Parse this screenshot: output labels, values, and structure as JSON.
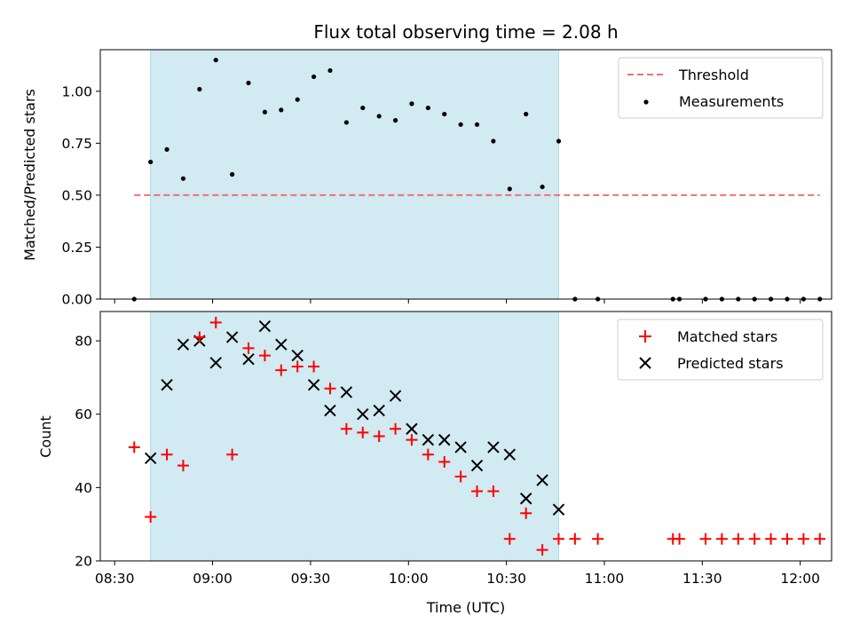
{
  "chart_data": {
    "title": "Flux total observing time = 2.08 h",
    "xlabel": "Time (UTC)",
    "x_ticks": [
      "08:30",
      "09:00",
      "09:30",
      "10:00",
      "10:30",
      "11:00",
      "11:30",
      "12:00"
    ],
    "x_tick_minutes": [
      510,
      540,
      570,
      600,
      630,
      660,
      690,
      720
    ],
    "xlim": [
      "08:30",
      "12:09"
    ],
    "shaded_span": {
      "start": "08:41",
      "end": "10:46",
      "color": "#add8e6"
    },
    "panels": [
      {
        "type": "scatter",
        "ylabel": "Matched/Predicted stars",
        "ylim": [
          0,
          1.2
        ],
        "y_ticks": [
          "0.00",
          "0.25",
          "0.50",
          "0.75",
          "1.00"
        ],
        "y_tick_values": [
          0,
          0.25,
          0.5,
          0.75,
          1.0
        ],
        "legend": {
          "placement": "top-right",
          "entries": [
            "Threshold",
            "Measurements"
          ]
        },
        "threshold": {
          "name": "Threshold",
          "value": 0.5,
          "x_range": [
            "08:36",
            "12:06"
          ],
          "color": "#f07070"
        },
        "series": [
          {
            "name": "Measurements",
            "marker": "dot",
            "color": "#000000",
            "x": [
              "08:36",
              "08:41",
              "08:46",
              "08:51",
              "08:56",
              "09:01",
              "09:06",
              "09:11",
              "09:16",
              "09:21",
              "09:26",
              "09:31",
              "09:36",
              "09:41",
              "09:46",
              "09:51",
              "09:56",
              "10:01",
              "10:06",
              "10:11",
              "10:16",
              "10:21",
              "10:26",
              "10:31",
              "10:36",
              "10:41",
              "10:46",
              "10:51",
              "10:58",
              "11:21",
              "11:23",
              "11:31",
              "11:36",
              "11:41",
              "11:46",
              "11:51",
              "11:56",
              "12:01",
              "12:06"
            ],
            "y": [
              0,
              0.66,
              0.72,
              0.58,
              1.01,
              1.15,
              0.6,
              1.04,
              0.9,
              0.91,
              0.96,
              1.07,
              1.1,
              0.85,
              0.92,
              0.88,
              0.86,
              0.94,
              0.92,
              0.89,
              0.84,
              0.84,
              0.76,
              0.53,
              0.89,
              0.54,
              0.76,
              0,
              0,
              0,
              0,
              0,
              0,
              0,
              0,
              0,
              0,
              0,
              0
            ]
          }
        ]
      },
      {
        "type": "scatter",
        "ylabel": "Count",
        "ylim": [
          20,
          88
        ],
        "y_ticks": [
          "20",
          "40",
          "60",
          "80"
        ],
        "y_tick_values": [
          20,
          40,
          60,
          80
        ],
        "legend": {
          "placement": "top-right",
          "entries": [
            "Matched stars",
            "Predicted stars"
          ]
        },
        "series": [
          {
            "name": "Matched stars",
            "marker": "plus",
            "color": "#ff0000",
            "x": [
              "08:36",
              "08:41",
              "08:46",
              "08:51",
              "08:56",
              "09:01",
              "09:06",
              "09:11",
              "09:16",
              "09:21",
              "09:26",
              "09:31",
              "09:36",
              "09:41",
              "09:46",
              "09:51",
              "09:56",
              "10:01",
              "10:06",
              "10:11",
              "10:16",
              "10:21",
              "10:26",
              "10:31",
              "10:36",
              "10:41",
              "10:46",
              "10:51",
              "10:58",
              "11:21",
              "11:23",
              "11:31",
              "11:36",
              "11:41",
              "11:46",
              "11:51",
              "11:56",
              "12:01",
              "12:06"
            ],
            "y": [
              51,
              32,
              49,
              46,
              81,
              85,
              49,
              78,
              76,
              72,
              73,
              73,
              67,
              56,
              55,
              54,
              56,
              53,
              49,
              47,
              43,
              39,
              39,
              26,
              33,
              23,
              26,
              26,
              26,
              26,
              26,
              26,
              26,
              26,
              26,
              26,
              26,
              26,
              26
            ]
          },
          {
            "name": "Predicted stars",
            "marker": "x",
            "color": "#000000",
            "x": [
              "08:41",
              "08:46",
              "08:51",
              "08:56",
              "09:01",
              "09:06",
              "09:11",
              "09:16",
              "09:21",
              "09:26",
              "09:31",
              "09:36",
              "09:41",
              "09:46",
              "09:51",
              "09:56",
              "10:01",
              "10:06",
              "10:11",
              "10:16",
              "10:21",
              "10:26",
              "10:31",
              "10:36",
              "10:41",
              "10:46"
            ],
            "y": [
              48,
              68,
              79,
              80,
              74,
              81,
              75,
              84,
              79,
              76,
              68,
              61,
              66,
              60,
              61,
              65,
              56,
              53,
              53,
              51,
              46,
              51,
              49,
              37,
              42,
              34
            ]
          }
        ]
      }
    ]
  }
}
